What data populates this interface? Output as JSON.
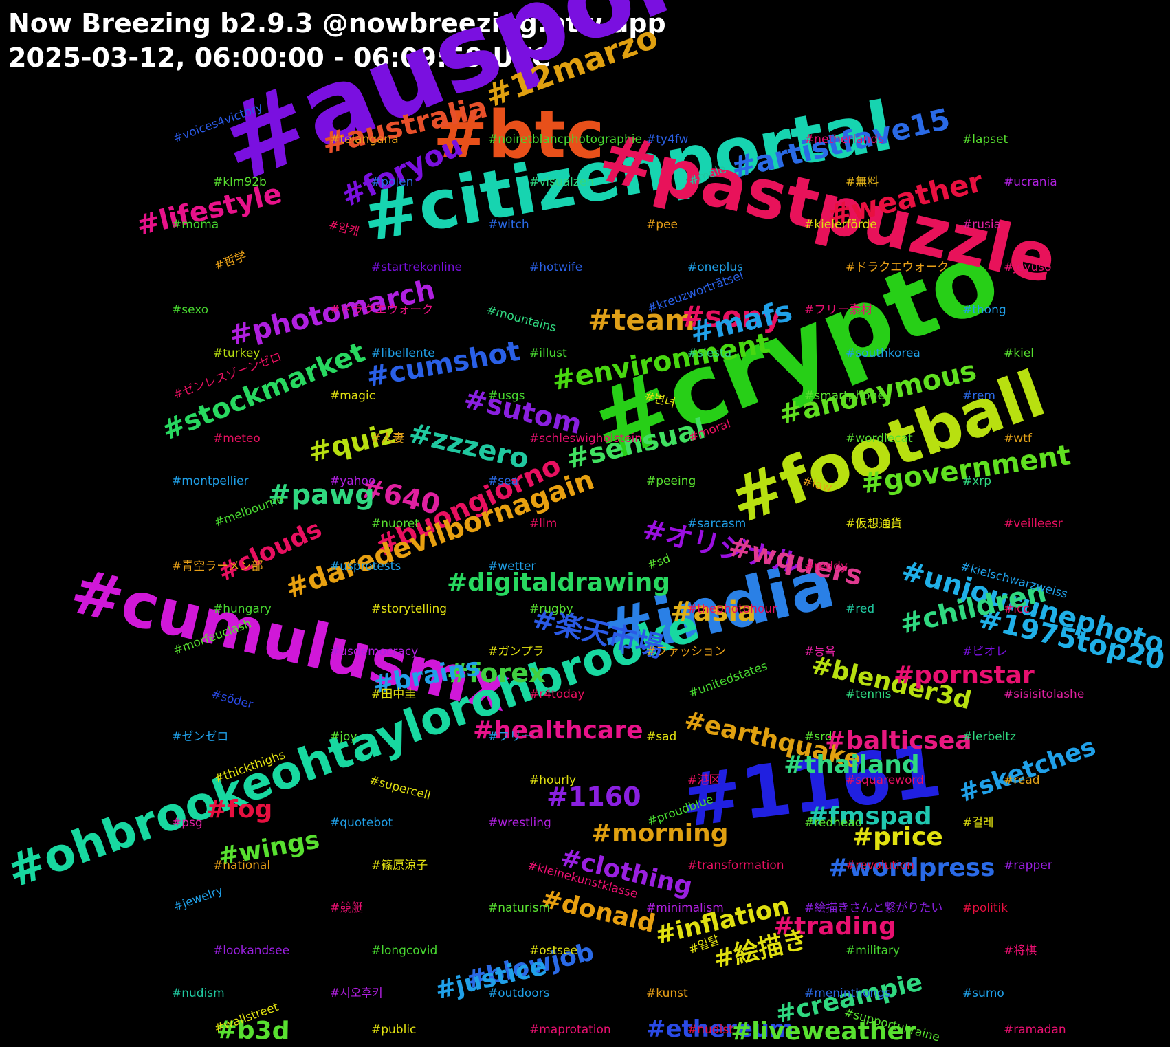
{
  "header": {
    "title": "Now Breezing b2.9.3 @nowbreezing.ntw.app",
    "subtitle": "2025-03-12, 06:00:00 - 06:09:59 UTC"
  },
  "words": [
    {
      "t": "#auspol",
      "c": "#7a10e0",
      "s": 150
    },
    {
      "t": "#crypto",
      "c": "#27cf17",
      "s": 140
    },
    {
      "t": "#citizenportal",
      "c": "#17d4b0",
      "s": 98
    },
    {
      "t": "#pastpuzzle",
      "c": "#e8125a",
      "s": 98
    },
    {
      "t": "#btc",
      "c": "#e8501a",
      "s": 95
    },
    {
      "t": "#1161",
      "c": "#2020e0",
      "s": 105
    },
    {
      "t": "#football",
      "c": "#b8e010",
      "s": 92
    },
    {
      "t": "#india",
      "c": "#2a80e6",
      "s": 95
    },
    {
      "t": "#cumulusmx",
      "c": "#d018d8",
      "s": 90
    },
    {
      "t": "#ohbrookeohtaylorohbrooke",
      "c": "#18d8a0",
      "s": 66
    },
    {
      "t": "#12marzo",
      "c": "#e0a010",
      "s": 46
    },
    {
      "t": "#artistfave15",
      "c": "#2a6ae6",
      "s": 42
    },
    {
      "t": "#australia",
      "c": "#e8502a",
      "s": 42
    },
    {
      "t": "#foryou",
      "c": "#7a10e0",
      "s": 42
    },
    {
      "t": "#lifestyle",
      "c": "#e8128a",
      "s": 40
    },
    {
      "t": "#weather",
      "c": "#e81040",
      "s": 42
    },
    {
      "t": "#photomarch",
      "c": "#b020e0",
      "s": 40
    },
    {
      "t": "#team",
      "c": "#e0a018",
      "s": 42
    },
    {
      "t": "#sony",
      "c": "#e81060",
      "s": 42
    },
    {
      "t": "#mafs",
      "c": "#20a0e8",
      "s": 42
    },
    {
      "t": "#stockmarket",
      "c": "#28d860",
      "s": 40
    },
    {
      "t": "#cumshot",
      "c": "#2a60e6",
      "s": 40
    },
    {
      "t": "#environment",
      "c": "#48d810",
      "s": 40
    },
    {
      "t": "#anonymous",
      "c": "#60e020",
      "s": 40
    },
    {
      "t": "#sutom",
      "c": "#8a20e0",
      "s": 40
    },
    {
      "t": "#quiz",
      "c": "#b8e010",
      "s": 40
    },
    {
      "t": "#zzzero",
      "c": "#20c8a0",
      "s": 40
    },
    {
      "t": "#sensual",
      "c": "#40e060",
      "s": 40
    },
    {
      "t": "#640",
      "c": "#e020a0",
      "s": 40
    },
    {
      "t": "#government",
      "c": "#60e020",
      "s": 40
    },
    {
      "t": "#buongiorno",
      "c": "#e81060",
      "s": 40
    },
    {
      "t": "#pawg",
      "c": "#30d880",
      "s": 40
    },
    {
      "t": "#unjourunephoto",
      "c": "#20b0e8",
      "s": 40
    },
    {
      "t": "#daredevilbornagain",
      "c": "#e8a010",
      "s": 40
    },
    {
      "t": "#オリジナル",
      "c": "#9a10e0",
      "s": 40
    },
    {
      "t": "#wquers",
      "c": "#e03a90",
      "s": 40
    },
    {
      "t": "#1975top20",
      "c": "#20b0e8",
      "s": 40
    },
    {
      "t": "#digitaldrawing",
      "c": "#28d860",
      "s": 36
    },
    {
      "t": "#楽天市場",
      "c": "#2a5ae6",
      "s": 40
    },
    {
      "t": "#asia",
      "c": "#e0b018",
      "s": 40
    },
    {
      "t": "#children",
      "c": "#30d880",
      "s": 40
    },
    {
      "t": "#forex",
      "c": "#40d040",
      "s": 38
    },
    {
      "t": "#blender3d",
      "c": "#b8e010",
      "s": 36
    },
    {
      "t": "#pornstar",
      "c": "#e81070",
      "s": 36
    },
    {
      "t": "#brains",
      "c": "#20a0e8",
      "s": 36
    },
    {
      "t": "#earthquake",
      "c": "#e0a010",
      "s": 36
    },
    {
      "t": "#healthcare",
      "c": "#e8128a",
      "s": 36
    },
    {
      "t": "#balticsea",
      "c": "#e81880",
      "s": 36
    },
    {
      "t": "#thailand",
      "c": "#30d880",
      "s": 36
    },
    {
      "t": "#sketches",
      "c": "#20a0e8",
      "s": 36
    },
    {
      "t": "#1160",
      "c": "#8a20e0",
      "s": 38
    },
    {
      "t": "#fog",
      "c": "#e81040",
      "s": 36
    },
    {
      "t": "#fmspad",
      "c": "#20c8b0",
      "s": 36
    },
    {
      "t": "#morning",
      "c": "#e0a010",
      "s": 36
    },
    {
      "t": "#price",
      "c": "#e0e010",
      "s": 36
    },
    {
      "t": "#wings",
      "c": "#58e030",
      "s": 36
    },
    {
      "t": "#clothing",
      "c": "#9a20e0",
      "s": 36
    },
    {
      "t": "#wordpress",
      "c": "#2a6ae6",
      "s": 36
    },
    {
      "t": "#donald",
      "c": "#e8a010",
      "s": 36
    },
    {
      "t": "#trading",
      "c": "#e81070",
      "s": 36
    },
    {
      "t": "#inflation",
      "c": "#e0e010",
      "s": 36
    },
    {
      "t": "#blowjob",
      "c": "#2a6ae6",
      "s": 36
    },
    {
      "t": "#絵描き",
      "c": "#e0e010",
      "s": 36
    },
    {
      "t": "#justice",
      "c": "#20a0e8",
      "s": 36
    },
    {
      "t": "#creampie",
      "c": "#30d880",
      "s": 36
    },
    {
      "t": "#ethereum",
      "c": "#2a4ae6",
      "s": 34
    },
    {
      "t": "#liveweather",
      "c": "#58e030",
      "s": 36
    },
    {
      "t": "#b3d",
      "c": "#58e030",
      "s": 36
    },
    {
      "t": "#clouds",
      "c": "#e81060",
      "s": 36
    },
    {
      "t": "#voices4victory",
      "c": "#2a5ae6",
      "s": 17
    },
    {
      "t": "#telangana",
      "c": "#e8a018",
      "s": 17
    },
    {
      "t": "#noiretblancphotographie",
      "c": "#48d830",
      "s": 17
    },
    {
      "t": "#ty4fw",
      "c": "#2a60e6",
      "s": 17
    },
    {
      "t": "#netherlands",
      "c": "#e81070",
      "s": 17
    },
    {
      "t": "#lapset",
      "c": "#58e030",
      "s": 17
    },
    {
      "t": "#klm92b",
      "c": "#58e030",
      "s": 17
    },
    {
      "t": "#polen",
      "c": "#2a6ae6",
      "s": 17
    },
    {
      "t": "#visualzen",
      "c": "#30d880",
      "s": 17
    },
    {
      "t": "#male",
      "c": "#20c8a0",
      "s": 17
    },
    {
      "t": "#無料",
      "c": "#e0b018",
      "s": 17
    },
    {
      "t": "#ucrania",
      "c": "#b020e0",
      "s": 17
    },
    {
      "t": "#moma",
      "c": "#48d830",
      "s": 17
    },
    {
      "t": "#암캐",
      "c": "#e81060",
      "s": 17
    },
    {
      "t": "#witch",
      "c": "#2a6ae6",
      "s": 17
    },
    {
      "t": "#pee",
      "c": "#e8a018",
      "s": 17
    },
    {
      "t": "#kielerförde",
      "c": "#e0e010",
      "s": 17
    },
    {
      "t": "#rusia",
      "c": "#e020a0",
      "s": 17
    },
    {
      "t": "#哲学",
      "c": "#e8a018",
      "s": 17
    },
    {
      "t": "#startrekonline",
      "c": "#7a10e0",
      "s": 17
    },
    {
      "t": "#hotwife",
      "c": "#2a60e6",
      "s": 17
    },
    {
      "t": "#oneplus",
      "c": "#20a0e8",
      "s": 17
    },
    {
      "t": "#ドラクエウォーク",
      "c": "#e8a018",
      "s": 17
    },
    {
      "t": "#jeyuso",
      "c": "#e81070",
      "s": 17
    },
    {
      "t": "#sexo",
      "c": "#48d830",
      "s": 17
    },
    {
      "t": "#ドラクエウォーク",
      "c": "#e81080",
      "s": 17
    },
    {
      "t": "#mountains",
      "c": "#30d880",
      "s": 17
    },
    {
      "t": "#kreuzworträtsel",
      "c": "#2a60e6",
      "s": 17
    },
    {
      "t": "#フリー素材",
      "c": "#e81070",
      "s": 17
    },
    {
      "t": "#thong",
      "c": "#20a0e8",
      "s": 17
    },
    {
      "t": "#turkey",
      "c": "#b8e010",
      "s": 17
    },
    {
      "t": "#libellente",
      "c": "#20a0e8",
      "s": 17
    },
    {
      "t": "#illust",
      "c": "#48d830",
      "s": 17
    },
    {
      "t": "#siesta",
      "c": "#30d880",
      "s": 17
    },
    {
      "t": "#southkorea",
      "c": "#20a0e8",
      "s": 17
    },
    {
      "t": "#kiel",
      "c": "#58e030",
      "s": 17
    },
    {
      "t": "#ゼンレスゾーンゼロ",
      "c": "#e81060",
      "s": 17
    },
    {
      "t": "#magic",
      "c": "#e0e010",
      "s": 17
    },
    {
      "t": "#usgs",
      "c": "#48d830",
      "s": 17
    },
    {
      "t": "#변녀",
      "c": "#e0e010",
      "s": 17
    },
    {
      "t": "#smartphone",
      "c": "#58e030",
      "s": 17
    },
    {
      "t": "#rem",
      "c": "#2a6ae6",
      "s": 17
    },
    {
      "t": "#meteo",
      "c": "#e81060",
      "s": 17
    },
    {
      "t": "#人妻",
      "c": "#e0a018",
      "s": 17
    },
    {
      "t": "#schleswigholstein",
      "c": "#e81070",
      "s": 17
    },
    {
      "t": "#moral",
      "c": "#e81060",
      "s": 17
    },
    {
      "t": "#wordlecat",
      "c": "#58e030",
      "s": 17
    },
    {
      "t": "#wtf",
      "c": "#e0a018",
      "s": 17
    },
    {
      "t": "#montpellier",
      "c": "#20a0e8",
      "s": 17
    },
    {
      "t": "#yahoo",
      "c": "#b020e0",
      "s": 17
    },
    {
      "t": "#sea",
      "c": "#2a6ae6",
      "s": 17
    },
    {
      "t": "#peeing",
      "c": "#58e030",
      "s": 17
    },
    {
      "t": "#law",
      "c": "#e8a018",
      "s": 17
    },
    {
      "t": "#xrp",
      "c": "#30d880",
      "s": 17
    },
    {
      "t": "#melbourne",
      "c": "#48d830",
      "s": 17
    },
    {
      "t": "#nuoret",
      "c": "#58e030",
      "s": 17
    },
    {
      "t": "#llm",
      "c": "#e81060",
      "s": 17
    },
    {
      "t": "#sarcasm",
      "c": "#20a0e8",
      "s": 17
    },
    {
      "t": "#仮想通貨",
      "c": "#e0e010",
      "s": 17
    },
    {
      "t": "#veilleesr",
      "c": "#e81060",
      "s": 17
    },
    {
      "t": "#青空ラーメン部",
      "c": "#e8a018",
      "s": 17
    },
    {
      "t": "#usprotests",
      "c": "#20a0e8",
      "s": 17
    },
    {
      "t": "#wetter",
      "c": "#20a0e8",
      "s": 17
    },
    {
      "t": "#sd",
      "c": "#58e030",
      "s": 17
    },
    {
      "t": "#reddy",
      "c": "#e81070",
      "s": 17
    },
    {
      "t": "#kielschwarzweiss",
      "c": "#20a0e8",
      "s": 17
    },
    {
      "t": "#hungary",
      "c": "#48d830",
      "s": 17
    },
    {
      "t": "#storytelling",
      "c": "#e0e010",
      "s": 17
    },
    {
      "t": "#rugby",
      "c": "#58e030",
      "s": 17
    },
    {
      "t": "#thephotohour",
      "c": "#e81060",
      "s": 17
    },
    {
      "t": "#red",
      "c": "#20c8a0",
      "s": 17
    },
    {
      "t": "#icc",
      "c": "#e81060",
      "s": 17
    },
    {
      "t": "#morfeuclash",
      "c": "#58e030",
      "s": 17
    },
    {
      "t": "#usdemocracy",
      "c": "#b020e0",
      "s": 17
    },
    {
      "t": "#ガンプラ",
      "c": "#e0e010",
      "s": 17
    },
    {
      "t": "#ファッション",
      "c": "#e8a018",
      "s": 17
    },
    {
      "t": "#능욕",
      "c": "#e020a0",
      "s": 17
    },
    {
      "t": "#ビオレ",
      "c": "#7a10e0",
      "s": 17
    },
    {
      "t": "#söder",
      "c": "#2a4ae6",
      "s": 17
    },
    {
      "t": "#田中圭",
      "c": "#e0e010",
      "s": 17
    },
    {
      "t": "#r4today",
      "c": "#e81060",
      "s": 17
    },
    {
      "t": "#unitedstates",
      "c": "#48d830",
      "s": 17
    },
    {
      "t": "#tennis",
      "c": "#30d880",
      "s": 17
    },
    {
      "t": "#sisisitolashe",
      "c": "#e020a0",
      "s": 17
    },
    {
      "t": "#ゼンゼロ",
      "c": "#20a0e8",
      "s": 17
    },
    {
      "t": "#joy",
      "c": "#58e030",
      "s": 17
    },
    {
      "t": "#フリー",
      "c": "#20a0e8",
      "s": 17
    },
    {
      "t": "#sad",
      "c": "#e0e010",
      "s": 17
    },
    {
      "t": "#srd",
      "c": "#58e030",
      "s": 17
    },
    {
      "t": "#lerbeltz",
      "c": "#30d880",
      "s": 17
    },
    {
      "t": "#thickthighs",
      "c": "#e0e010",
      "s": 17
    },
    {
      "t": "#supercell",
      "c": "#e0e010",
      "s": 17
    },
    {
      "t": "#hourly",
      "c": "#e0e010",
      "s": 17
    },
    {
      "t": "#港区",
      "c": "#e81060",
      "s": 17
    },
    {
      "t": "#squareword",
      "c": "#e81060",
      "s": 17
    },
    {
      "t": "#read",
      "c": "#e0a018",
      "s": 17
    },
    {
      "t": "#psg",
      "c": "#e020a0",
      "s": 17
    },
    {
      "t": "#quotebot",
      "c": "#20a0e8",
      "s": 17
    },
    {
      "t": "#wrestling",
      "c": "#b020e0",
      "s": 17
    },
    {
      "t": "#proudblue",
      "c": "#48d830",
      "s": 17
    },
    {
      "t": "#redhead",
      "c": "#58e030",
      "s": 17
    },
    {
      "t": "#걸레",
      "c": "#e0e010",
      "s": 17
    },
    {
      "t": "#national",
      "c": "#e8a018",
      "s": 17
    },
    {
      "t": "#篠原涼子",
      "c": "#e0e010",
      "s": 17
    },
    {
      "t": "#kleinekunstklasse",
      "c": "#e81070",
      "s": 17
    },
    {
      "t": "#transformation",
      "c": "#e81060",
      "s": 17
    },
    {
      "t": "#revolution",
      "c": "#e81040",
      "s": 17
    },
    {
      "t": "#rapper",
      "c": "#9a20e0",
      "s": 17
    },
    {
      "t": "#jewelry",
      "c": "#20a0e8",
      "s": 17
    },
    {
      "t": "#競艇",
      "c": "#e81070",
      "s": 17
    },
    {
      "t": "#naturism",
      "c": "#58e030",
      "s": 17
    },
    {
      "t": "#minimalism",
      "c": "#b020e0",
      "s": 17
    },
    {
      "t": "#絵描きさんと繋がりたい",
      "c": "#8a20e0",
      "s": 17
    },
    {
      "t": "#politik",
      "c": "#e81040",
      "s": 17
    },
    {
      "t": "#lookandsee",
      "c": "#9a20e0",
      "s": 17
    },
    {
      "t": "#longcovid",
      "c": "#48d830",
      "s": 17
    },
    {
      "t": "#ostsee",
      "c": "#e0e010",
      "s": 17
    },
    {
      "t": "#일탈",
      "c": "#e0e010",
      "s": 17
    },
    {
      "t": "#military",
      "c": "#48d830",
      "s": 17
    },
    {
      "t": "#将棋",
      "c": "#e81070",
      "s": 17
    },
    {
      "t": "#nudism",
      "c": "#20c8a0",
      "s": 17
    },
    {
      "t": "#시오후키",
      "c": "#b020e0",
      "s": 17
    },
    {
      "t": "#outdoors",
      "c": "#20a0e8",
      "s": 17
    },
    {
      "t": "#kunst",
      "c": "#e8a018",
      "s": 17
    },
    {
      "t": "#meninthongs",
      "c": "#2a6ae6",
      "s": 17
    },
    {
      "t": "#sumo",
      "c": "#20a0e8",
      "s": 17
    },
    {
      "t": "#wallstreet",
      "c": "#e0e010",
      "s": 17
    },
    {
      "t": "#public",
      "c": "#e0e010",
      "s": 17
    },
    {
      "t": "#maprotation",
      "c": "#e81070",
      "s": 17
    },
    {
      "t": "#nudist",
      "c": "#e81040",
      "s": 17
    },
    {
      "t": "#supportukraine",
      "c": "#58e030",
      "s": 17
    },
    {
      "t": "#ramadan",
      "c": "#e81070",
      "s": 17
    }
  ]
}
